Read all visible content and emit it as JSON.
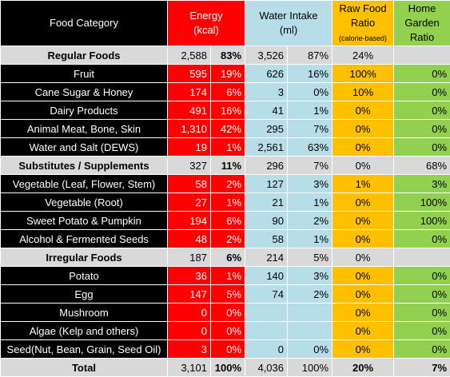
{
  "headers": {
    "food_category": "Food Category",
    "energy": [
      "Energy",
      "(kcal)"
    ],
    "water": [
      "Water Intake",
      "(ml)"
    ],
    "raw": [
      "Raw Food",
      "Ratio",
      "(calorie-based)"
    ],
    "garden": [
      "Home",
      "Garden",
      "Ratio"
    ]
  },
  "colors": {
    "black": "#000000",
    "energy_red": "#ff0000",
    "water_blue": "#b7dde8",
    "raw_yellow": "#ffc000",
    "garden_green": "#92d050",
    "group_grey": "#d9d9d9"
  },
  "rows": [
    {
      "name": "Regular Foods",
      "type": "group",
      "energy": "2,588",
      "energy_pct": "83%",
      "water": "3,526",
      "water_pct": "87%",
      "raw": "24%",
      "garden": ""
    },
    {
      "name": "Fruit",
      "type": "item",
      "energy": "595",
      "energy_pct": "19%",
      "water": "626",
      "water_pct": "16%",
      "raw": "100%",
      "garden": "0%"
    },
    {
      "name": "Cane Sugar & Honey",
      "type": "item",
      "energy": "174",
      "energy_pct": "6%",
      "water": "3",
      "water_pct": "0%",
      "raw": "10%",
      "garden": "0%"
    },
    {
      "name": "Dairy Products",
      "type": "item",
      "energy": "491",
      "energy_pct": "16%",
      "water": "41",
      "water_pct": "1%",
      "raw": "0%",
      "garden": "0%"
    },
    {
      "name": "Animal Meat, Bone, Skin",
      "type": "item",
      "energy": "1,310",
      "energy_pct": "42%",
      "water": "295",
      "water_pct": "7%",
      "raw": "0%",
      "garden": "0%"
    },
    {
      "name": "Water and Salt (DEWS)",
      "type": "item",
      "energy": "19",
      "energy_pct": "1%",
      "water": "2,561",
      "water_pct": "63%",
      "raw": "0%",
      "garden": "0%"
    },
    {
      "name": "Substitutes / Supplements",
      "type": "group",
      "energy": "327",
      "energy_pct": "11%",
      "water": "296",
      "water_pct": "7%",
      "raw": "0%",
      "garden": "68%"
    },
    {
      "name": "Vegetable (Leaf, Flower, Stem)",
      "type": "item",
      "energy": "58",
      "energy_pct": "2%",
      "water": "127",
      "water_pct": "3%",
      "raw": "1%",
      "garden": "3%"
    },
    {
      "name": "Vegetable (Root)",
      "type": "item",
      "energy": "27",
      "energy_pct": "1%",
      "water": "21",
      "water_pct": "1%",
      "raw": "0%",
      "garden": "100%"
    },
    {
      "name": "Sweet Potato & Pumpkin",
      "type": "item",
      "energy": "194",
      "energy_pct": "6%",
      "water": "90",
      "water_pct": "2%",
      "raw": "0%",
      "garden": "100%"
    },
    {
      "name": "Alcohol & Fermented Seeds",
      "type": "item",
      "energy": "48",
      "energy_pct": "2%",
      "water": "58",
      "water_pct": "1%",
      "raw": "0%",
      "garden": "0%"
    },
    {
      "name": "Irregular Foods",
      "type": "group",
      "energy": "187",
      "energy_pct": "6%",
      "water": "214",
      "water_pct": "5%",
      "raw": "0%",
      "garden": ""
    },
    {
      "name": "Potato",
      "type": "item",
      "energy": "36",
      "energy_pct": "1%",
      "water": "140",
      "water_pct": "3%",
      "raw": "0%",
      "garden": "0%"
    },
    {
      "name": "Egg",
      "type": "item",
      "energy": "147",
      "energy_pct": "5%",
      "water": "74",
      "water_pct": "2%",
      "raw": "0%",
      "garden": "0%"
    },
    {
      "name": "Mushroom",
      "type": "item",
      "energy": "0",
      "energy_pct": "0%",
      "water": "",
      "water_pct": "",
      "raw": "0%",
      "garden": "0%"
    },
    {
      "name": "Algae (Kelp and others)",
      "type": "item",
      "energy": "0",
      "energy_pct": "0%",
      "water": "",
      "water_pct": "",
      "raw": "0%",
      "garden": "0%"
    },
    {
      "name": "Seed(Nut, Bean, Grain, Seed Oil)",
      "type": "item",
      "energy": "3",
      "energy_pct": "0%",
      "water": "0",
      "water_pct": "0%",
      "raw": "0%",
      "garden": "0%"
    },
    {
      "name": "Total",
      "type": "total",
      "energy": "3,101",
      "energy_pct": "100%",
      "water": "4,036",
      "water_pct": "100%",
      "raw": "20%",
      "garden": "7%"
    }
  ]
}
